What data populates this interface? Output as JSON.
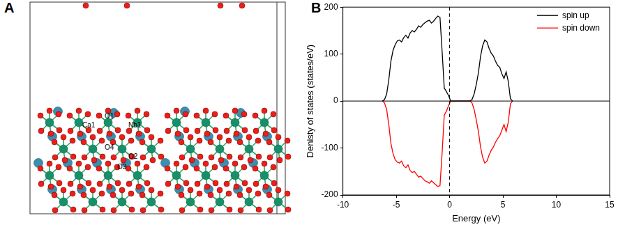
{
  "figure": {
    "panel_labels": [
      "A",
      "B"
    ],
    "structure": {
      "atom_labels": [
        "Ca1",
        "O1",
        "Nb1",
        "O4",
        "O2",
        "O3"
      ]
    }
  },
  "chart_data": {
    "type": "line",
    "x_label": "Energy (eV)",
    "y_label": "Denisty of states (states/eV)",
    "xlim": [
      -10,
      15
    ],
    "xticks": [
      -10,
      -5,
      0,
      5,
      10,
      15
    ],
    "ylim": [
      -200,
      200
    ],
    "yticks": [
      -200,
      -100,
      0,
      100,
      200
    ],
    "grid": false,
    "legend": "upper right",
    "reference_lines": [
      {
        "x": 0,
        "line_style": "dashed",
        "color": "#000000"
      },
      {
        "y": 0,
        "line_style": "solid",
        "color": "#000000"
      }
    ],
    "series": [
      {
        "name": "spin up",
        "color": "#000000",
        "x": [
          -6.3,
          -6.1,
          -5.9,
          -5.7,
          -5.5,
          -5.3,
          -5.1,
          -4.9,
          -4.7,
          -4.5,
          -4.3,
          -4.1,
          -3.9,
          -3.7,
          -3.5,
          -3.3,
          -3.1,
          -2.9,
          -2.7,
          -2.5,
          -2.3,
          -2.1,
          -1.9,
          -1.7,
          -1.5,
          -1.3,
          -1.1,
          -0.9,
          -0.7,
          -0.5,
          -0.3,
          -0.1,
          0.1,
          0.5,
          1.0,
          1.5,
          1.9,
          2.1,
          2.3,
          2.5,
          2.7,
          2.9,
          3.1,
          3.3,
          3.5,
          3.7,
          3.9,
          4.1,
          4.3,
          4.5,
          4.7,
          4.9,
          5.1,
          5.3,
          5.5,
          5.7,
          5.9
        ],
        "values": [
          0,
          3,
          15,
          45,
          85,
          108,
          120,
          128,
          130,
          126,
          135,
          140,
          134,
          145,
          150,
          147,
          153,
          160,
          157,
          163,
          167,
          170,
          172,
          166,
          170,
          176,
          181,
          178,
          105,
          28,
          20,
          12,
          0,
          0,
          0,
          0,
          0,
          3,
          15,
          35,
          60,
          95,
          118,
          130,
          126,
          112,
          102,
          96,
          85,
          76,
          72,
          58,
          48,
          62,
          42,
          5,
          0
        ]
      },
      {
        "name": "spin down",
        "color": "#ff0000",
        "x": [
          -6.3,
          -6.1,
          -5.9,
          -5.7,
          -5.5,
          -5.3,
          -5.1,
          -4.9,
          -4.7,
          -4.5,
          -4.3,
          -4.1,
          -3.9,
          -3.7,
          -3.5,
          -3.3,
          -3.1,
          -2.9,
          -2.7,
          -2.5,
          -2.3,
          -2.1,
          -1.9,
          -1.7,
          -1.5,
          -1.3,
          -1.1,
          -0.9,
          -0.7,
          -0.5,
          -0.3,
          -0.1,
          0.1,
          0.5,
          1.0,
          1.5,
          1.9,
          2.1,
          2.3,
          2.5,
          2.7,
          2.9,
          3.1,
          3.3,
          3.5,
          3.7,
          3.9,
          4.1,
          4.3,
          4.5,
          4.7,
          4.9,
          5.1,
          5.3,
          5.5,
          5.7,
          5.9
        ],
        "values": [
          0,
          -4,
          -18,
          -50,
          -90,
          -112,
          -125,
          -130,
          -132,
          -128,
          -138,
          -142,
          -136,
          -148,
          -152,
          -150,
          -156,
          -162,
          -160,
          -165,
          -170,
          -172,
          -175,
          -170,
          -174,
          -178,
          -182,
          -180,
          -110,
          -30,
          -22,
          -10,
          0,
          0,
          0,
          0,
          0,
          -4,
          -18,
          -40,
          -65,
          -98,
          -120,
          -132,
          -128,
          -115,
          -105,
          -98,
          -88,
          -80,
          -74,
          -62,
          -50,
          -65,
          -45,
          -6,
          0
        ]
      }
    ]
  }
}
